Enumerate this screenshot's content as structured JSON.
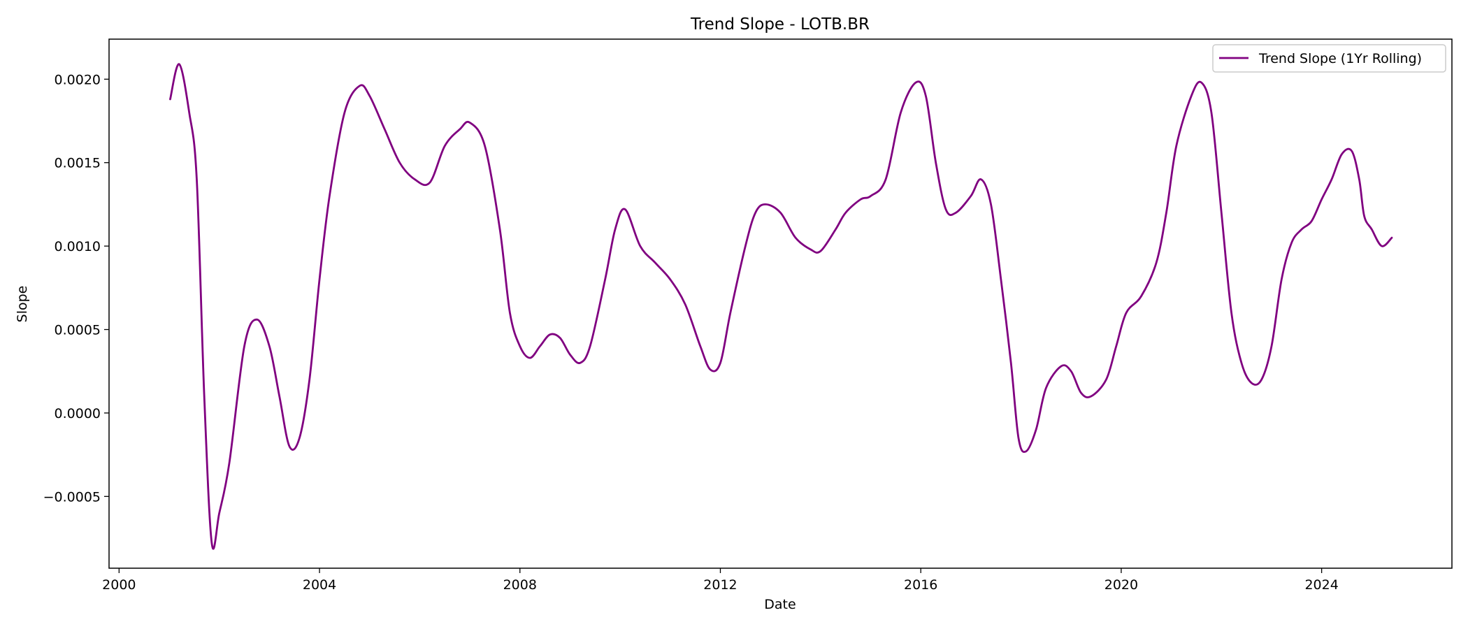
{
  "chart_data": {
    "type": "line",
    "title": "Trend Slope - LOTB.BR",
    "xlabel": "Date",
    "ylabel": "Slope",
    "xlim": [
      1999.8,
      2026.6
    ],
    "ylim": [
      -0.00093,
      0.00224
    ],
    "xticks": [
      {
        "value": 2000,
        "label": "2000"
      },
      {
        "value": 2004,
        "label": "2004"
      },
      {
        "value": 2008,
        "label": "2008"
      },
      {
        "value": 2012,
        "label": "2012"
      },
      {
        "value": 2016,
        "label": "2016"
      },
      {
        "value": 2020,
        "label": "2020"
      },
      {
        "value": 2024,
        "label": "2024"
      }
    ],
    "yticks": [
      {
        "value": -0.0005,
        "label": "−0.0005"
      },
      {
        "value": 0.0,
        "label": "0.0000"
      },
      {
        "value": 0.0005,
        "label": "0.0005"
      },
      {
        "value": 0.001,
        "label": "0.0010"
      },
      {
        "value": 0.0015,
        "label": "0.0015"
      },
      {
        "value": 0.002,
        "label": "0.0020"
      }
    ],
    "grid": false,
    "legend": {
      "position": "top-right"
    },
    "series": [
      {
        "name": "Trend Slope (1Yr Rolling)",
        "color": "#800080",
        "points": [
          [
            2001.02,
            0.00188
          ],
          [
            2001.2,
            0.00209
          ],
          [
            2001.4,
            0.0018
          ],
          [
            2001.55,
            0.0014
          ],
          [
            2001.7,
            0.0001
          ],
          [
            2001.85,
            -0.00078
          ],
          [
            2002.0,
            -0.0006
          ],
          [
            2002.2,
            -0.0003
          ],
          [
            2002.5,
            0.0004
          ],
          [
            2002.75,
            0.00056
          ],
          [
            2003.0,
            0.0004
          ],
          [
            2003.2,
            0.0001
          ],
          [
            2003.4,
            -0.0002
          ],
          [
            2003.6,
            -0.00015
          ],
          [
            2003.8,
            0.0002
          ],
          [
            2004.0,
            0.0008
          ],
          [
            2004.2,
            0.0013
          ],
          [
            2004.5,
            0.0018
          ],
          [
            2004.8,
            0.00196
          ],
          [
            2005.0,
            0.0019
          ],
          [
            2005.3,
            0.0017
          ],
          [
            2005.6,
            0.0015
          ],
          [
            2005.9,
            0.0014
          ],
          [
            2006.2,
            0.00138
          ],
          [
            2006.5,
            0.0016
          ],
          [
            2006.8,
            0.0017
          ],
          [
            2007.0,
            0.00174
          ],
          [
            2007.3,
            0.0016
          ],
          [
            2007.6,
            0.0011
          ],
          [
            2007.8,
            0.0006
          ],
          [
            2008.0,
            0.0004
          ],
          [
            2008.2,
            0.00033
          ],
          [
            2008.4,
            0.0004
          ],
          [
            2008.6,
            0.00047
          ],
          [
            2008.8,
            0.00045
          ],
          [
            2009.0,
            0.00035
          ],
          [
            2009.2,
            0.0003
          ],
          [
            2009.4,
            0.0004
          ],
          [
            2009.7,
            0.0008
          ],
          [
            2009.9,
            0.0011
          ],
          [
            2010.1,
            0.00122
          ],
          [
            2010.4,
            0.001
          ],
          [
            2010.7,
            0.0009
          ],
          [
            2011.0,
            0.0008
          ],
          [
            2011.3,
            0.00065
          ],
          [
            2011.6,
            0.0004
          ],
          [
            2011.8,
            0.00026
          ],
          [
            2012.0,
            0.0003
          ],
          [
            2012.2,
            0.0006
          ],
          [
            2012.5,
            0.001
          ],
          [
            2012.7,
            0.0012
          ],
          [
            2012.9,
            0.00125
          ],
          [
            2013.2,
            0.0012
          ],
          [
            2013.5,
            0.00105
          ],
          [
            2013.8,
            0.00098
          ],
          [
            2014.0,
            0.00097
          ],
          [
            2014.3,
            0.0011
          ],
          [
            2014.5,
            0.0012
          ],
          [
            2014.8,
            0.00128
          ],
          [
            2015.0,
            0.0013
          ],
          [
            2015.3,
            0.0014
          ],
          [
            2015.6,
            0.0018
          ],
          [
            2015.9,
            0.00198
          ],
          [
            2016.1,
            0.0019
          ],
          [
            2016.3,
            0.0015
          ],
          [
            2016.5,
            0.00122
          ],
          [
            2016.7,
            0.0012
          ],
          [
            2017.0,
            0.0013
          ],
          [
            2017.2,
            0.0014
          ],
          [
            2017.4,
            0.00125
          ],
          [
            2017.6,
            0.0008
          ],
          [
            2017.8,
            0.0003
          ],
          [
            2017.95,
            -0.00015
          ],
          [
            2018.1,
            -0.00023
          ],
          [
            2018.3,
            -0.0001
          ],
          [
            2018.5,
            0.00015
          ],
          [
            2018.8,
            0.00028
          ],
          [
            2019.0,
            0.00025
          ],
          [
            2019.2,
            0.00012
          ],
          [
            2019.4,
            0.0001
          ],
          [
            2019.7,
            0.0002
          ],
          [
            2019.9,
            0.0004
          ],
          [
            2020.1,
            0.0006
          ],
          [
            2020.4,
            0.0007
          ],
          [
            2020.7,
            0.0009
          ],
          [
            2020.9,
            0.0012
          ],
          [
            2021.1,
            0.0016
          ],
          [
            2021.4,
            0.0019
          ],
          [
            2021.6,
            0.00198
          ],
          [
            2021.8,
            0.0018
          ],
          [
            2022.0,
            0.0012
          ],
          [
            2022.2,
            0.0006
          ],
          [
            2022.4,
            0.0003
          ],
          [
            2022.6,
            0.00018
          ],
          [
            2022.8,
            0.0002
          ],
          [
            2023.0,
            0.0004
          ],
          [
            2023.2,
            0.0008
          ],
          [
            2023.4,
            0.00102
          ],
          [
            2023.6,
            0.0011
          ],
          [
            2023.8,
            0.00115
          ],
          [
            2024.0,
            0.00128
          ],
          [
            2024.2,
            0.0014
          ],
          [
            2024.4,
            0.00155
          ],
          [
            2024.6,
            0.00157
          ],
          [
            2024.75,
            0.0014
          ],
          [
            2024.85,
            0.00118
          ],
          [
            2025.0,
            0.0011
          ],
          [
            2025.2,
            0.001
          ],
          [
            2025.4,
            0.00105
          ]
        ]
      }
    ]
  }
}
